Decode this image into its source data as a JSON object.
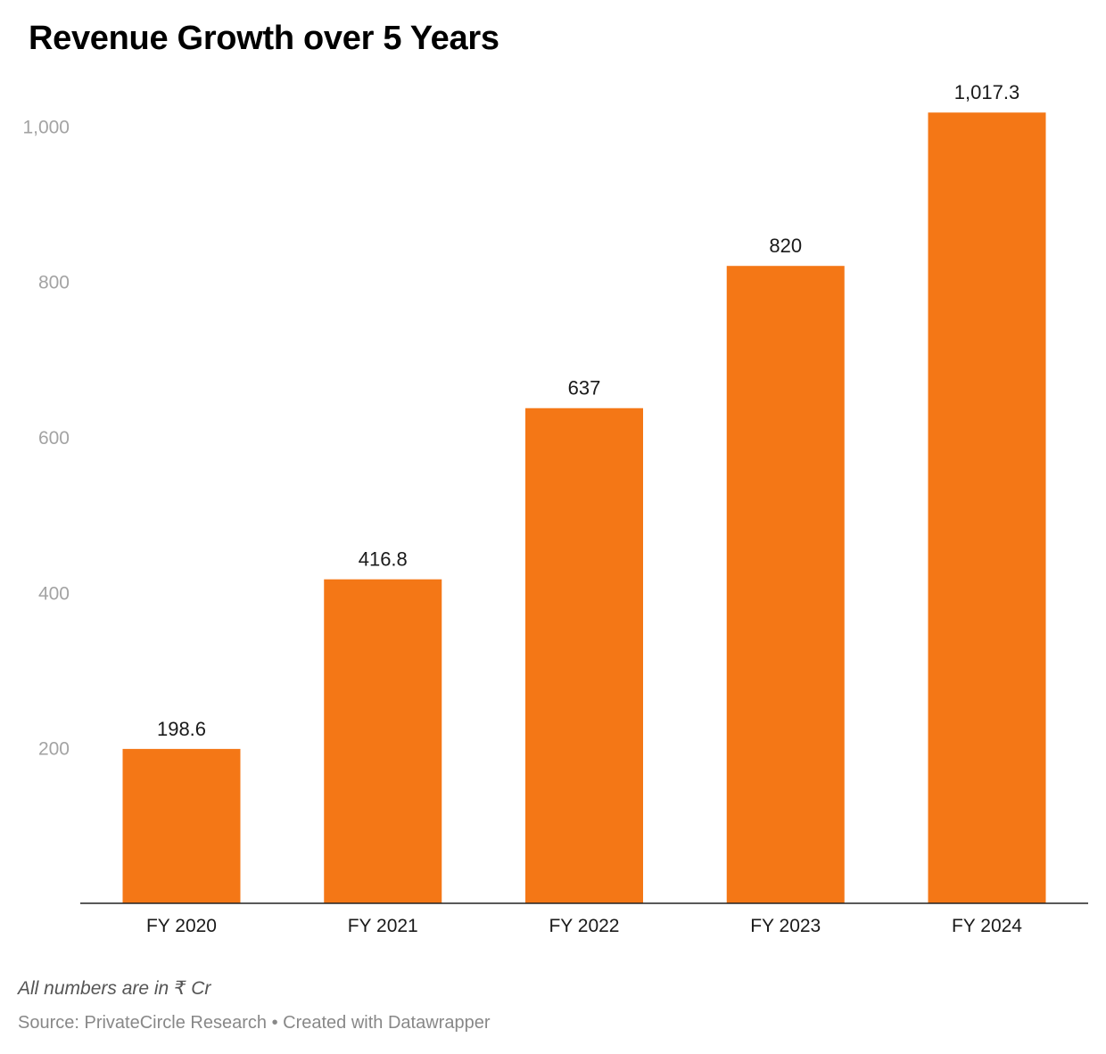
{
  "chart_data": {
    "type": "bar",
    "title": "Revenue Growth over 5 Years",
    "categories": [
      "FY 2020",
      "FY 2021",
      "FY 2022",
      "FY 2023",
      "FY 2024"
    ],
    "values": [
      198.6,
      416.8,
      637,
      820,
      1017.3
    ],
    "value_labels": [
      "198.6",
      "416.8",
      "637",
      "820",
      "1,017.3"
    ],
    "yticks": [
      200,
      400,
      600,
      800,
      1000
    ],
    "ytick_labels": [
      "200",
      "400",
      "600",
      "800",
      "1,000"
    ],
    "ylim": [
      0,
      1000
    ],
    "grid": false,
    "bar_color": "#f47716"
  },
  "notes": "All numbers are in ₹ Cr",
  "footer": {
    "source": "Source: PrivateCircle Research",
    "separator": "•",
    "created_with": "Created with Datawrapper"
  }
}
